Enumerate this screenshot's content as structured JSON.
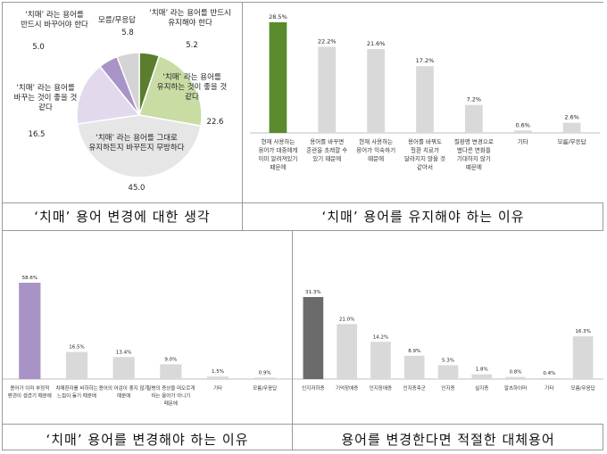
{
  "panels": {
    "top_left_caption": "‘치매’ 용어 변경에 대한 생각",
    "top_right_caption": "‘치매’ 용어를 유지해야 하는 이유",
    "bottom_left_caption": "‘치매’ 용어를 변경해야 하는 이유",
    "bottom_right_caption": "용어를 변경한다면 적절한 대체용어"
  },
  "chart_data": [
    {
      "type": "pie",
      "title": "‘치매’ 용어 변경에 대한 생각",
      "slices": [
        {
          "label": "‘치매’ 라는 용어를 반드시 유지해야 한다",
          "value": 5.2,
          "color": "#5b7d2e"
        },
        {
          "label": "‘치매’ 라는 용어를 유지하는 것이 좋을 것 같다",
          "value": 22.6,
          "color": "#c8dca4"
        },
        {
          "label": "‘치매’ 라는 용어를 그대로 유지하든지 바꾸든지 무방하다",
          "value": 45.0,
          "color": "#e6e6e6"
        },
        {
          "label": "‘치매’ 라는 용어를 바꾸는 것이 좋을 것 같다",
          "value": 16.5,
          "color": "#e2d9ec"
        },
        {
          "label": "‘치매’ 라는 용어를 반드시 바꾸어야 한다",
          "value": 5.0,
          "color": "#a894c6"
        },
        {
          "label": "모름/무응답",
          "value": 5.8,
          "color": "#d4d4d4"
        }
      ]
    },
    {
      "type": "bar",
      "title": "‘치매’ 용어를 유지해야 하는 이유",
      "categories": [
        "현재 사용하는 용어가 대중에게 이미 알려져있기 때문에",
        "용어를 바꾸면 혼란을 초래할 수 있기 때문에",
        "현재 사용하는 용어가 익숙하기 때문에",
        "용어를 바꿔도 질환 치료가 달라지지 않을 것 같아서",
        "질환명 변경으로 별다른 변화를 기대하지 않기 때문에",
        "기타",
        "모름/무응답"
      ],
      "value_labels": [
        "28.5%",
        "22.2%",
        "21.6%",
        "17.2%",
        "7.2%",
        "0.6%",
        "2.6%"
      ],
      "values": [
        28.5,
        22.2,
        21.6,
        17.2,
        7.2,
        0.6,
        2.6
      ]
    },
    {
      "type": "bar",
      "title": "‘치매’ 용어를 변경해야 하는 이유",
      "categories": [
        "용어가 이미 부정적 편견이 생겼기 때문에",
        "치매환자를 비하하는 느낌이 들기 때문에",
        "용어의 어감이 좋지 않기 때문에",
        "질병의 증상을 떠오르게 하는 용어가 아니기 때문에",
        "기타",
        "모름/무응답"
      ],
      "value_labels": [
        "58.6%",
        "16.5%",
        "13.4%",
        "9.0%",
        "1.5%",
        "0.9%"
      ],
      "values": [
        58.6,
        16.5,
        13.4,
        9.0,
        1.5,
        0.9
      ]
    },
    {
      "type": "bar",
      "title": "용어를 변경한다면 적절한 대체용어",
      "categories": [
        "인지저하증",
        "기억장애증",
        "인지장애증",
        "인지증후군",
        "인지증",
        "실지증",
        "알츠하이머",
        "기타",
        "모름/무응답"
      ],
      "value_labels": [
        "31.3%",
        "21.0%",
        "14.2%",
        "8.9%",
        "5.3%",
        "1.8%",
        "0.8%",
        "0.4%",
        "16.3%"
      ],
      "values": [
        31.3,
        21.0,
        14.2,
        8.9,
        5.3,
        1.8,
        0.8,
        0.4,
        16.3
      ]
    }
  ],
  "colors": {
    "tr_highlight": "#5b8a2f",
    "bl_highlight": "#a793c5",
    "br_highlight": "#6b6b6b",
    "default_bar": "#d9d9d9"
  }
}
